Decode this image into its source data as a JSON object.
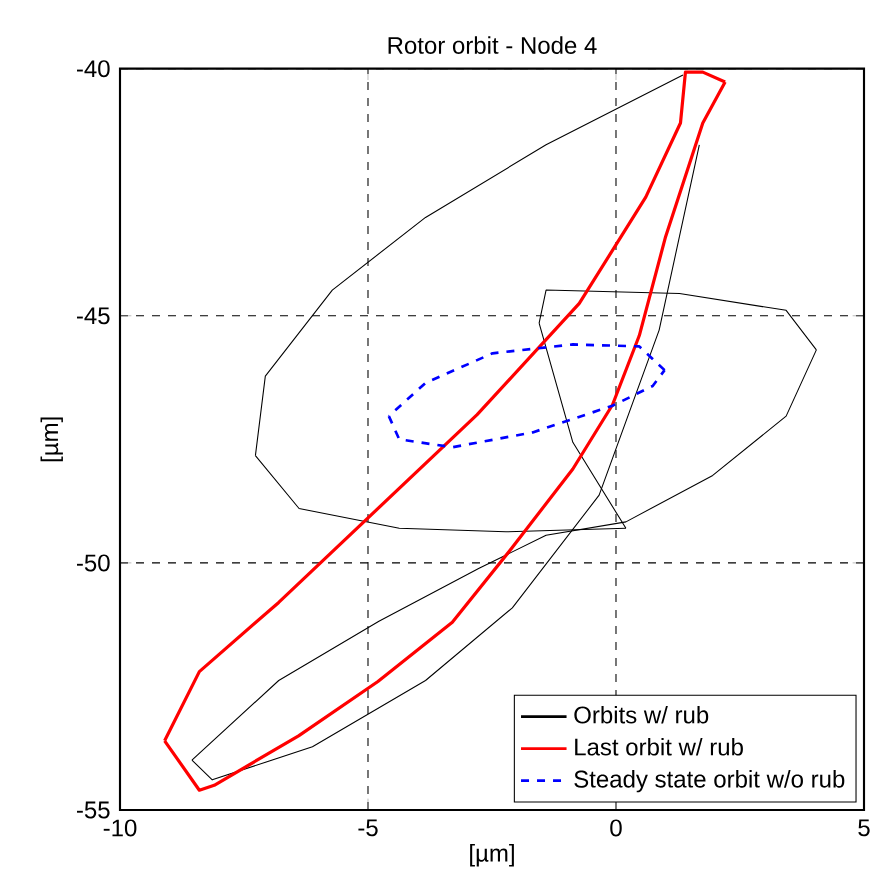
{
  "chart_data": {
    "type": "line",
    "title": "Rotor orbit - Node 4",
    "xlabel": "[µm]",
    "ylabel": "[µm]",
    "xlim": [
      -10,
      5
    ],
    "ylim": [
      -55,
      -40
    ],
    "xticks": [
      -10,
      -5,
      0,
      5
    ],
    "yticks": [
      -55,
      -50,
      -45,
      -40
    ],
    "grid": true,
    "legend": "bottom right",
    "marker": "none",
    "series": [
      {
        "name": "Orbits w/ rub",
        "color": "#000000",
        "line_style": "solid",
        "x": [
          1.35,
          -1.41,
          -3.84,
          -5.72,
          -7.07,
          -7.27
        ],
        "values": [
          -40.13,
          -41.54,
          -43.01,
          -44.48,
          -46.22,
          -47.83
        ]
      },
      {
        "color": "#000000",
        "line_style": "solid",
        "x": [
          -7.27,
          -6.39,
          -4.37,
          -2.22,
          0.2
        ],
        "values": [
          -47.83,
          -48.9,
          -49.3,
          -49.37,
          -49.3
        ]
      },
      {
        "color": "#000000",
        "line_style": "solid",
        "x": [
          0.2,
          -0.87,
          -1.55
        ],
        "values": [
          -49.3,
          -47.56,
          -45.15
        ]
      },
      {
        "color": "#000000",
        "line_style": "solid",
        "x": [
          -1.55,
          -1.41,
          1.28,
          3.43,
          4.04
        ],
        "values": [
          -45.15,
          -44.48,
          -44.55,
          -44.89,
          -45.69
        ]
      },
      {
        "color": "#000000",
        "line_style": "solid",
        "x": [
          4.04,
          3.43,
          1.95,
          0.2,
          -1.41,
          -2.76,
          -4.78,
          -6.8,
          -8.55
        ],
        "values": [
          -45.69,
          -47.03,
          -48.23,
          -49.17,
          -49.44,
          -50.11,
          -51.18,
          -52.38,
          -53.99
        ]
      },
      {
        "color": "#000000",
        "line_style": "solid",
        "x": [
          -8.55,
          -8.14,
          -6.12,
          -3.84,
          -2.09,
          -0.34,
          0.87,
          1.68
        ],
        "values": [
          -53.99,
          -54.39,
          -53.72,
          -52.38,
          -50.91,
          -48.63,
          -45.29,
          -41.54
        ]
      },
      {
        "name": "Last orbit w/ rub",
        "color": "#ff0000",
        "line_style": "solid",
        "x": [
          2.2,
          1.75,
          1.0,
          0.47,
          -0.07,
          -0.87,
          -2.1,
          -3.3,
          -4.8,
          -6.4,
          -8.1,
          -8.4,
          -9.1
        ],
        "values": [
          -40.27,
          -41.1,
          -43.4,
          -45.4,
          -46.8,
          -48.1,
          -49.7,
          -51.2,
          -52.4,
          -53.5,
          -54.5,
          -54.6,
          -53.6
        ]
      },
      {
        "color": "#ff0000",
        "line_style": "solid",
        "x": [
          -9.1,
          -8.4,
          -6.8,
          -4.8,
          -2.8,
          -0.74,
          0.6,
          1.3,
          1.4,
          1.75,
          2.2
        ],
        "values": [
          -53.6,
          -52.2,
          -50.8,
          -48.9,
          -47.0,
          -44.75,
          -42.6,
          -41.1,
          -40.07,
          -40.07,
          -40.27
        ]
      },
      {
        "name": "Steady state orbit w/o rub",
        "color": "#0000ff",
        "line_style": "dashed",
        "x": [
          0.98,
          0.47,
          -0.87,
          -2.49,
          -3.84,
          -4.58
        ],
        "values": [
          -46.1,
          -45.62,
          -45.58,
          -45.76,
          -46.36,
          -47.03
        ]
      },
      {
        "color": "#0000ff",
        "line_style": "dashed",
        "x": [
          -4.58,
          -4.37,
          -3.3,
          -1.68,
          -0.07,
          0.74,
          0.98
        ],
        "values": [
          -47.03,
          -47.5,
          -47.66,
          -47.36,
          -46.82,
          -46.42,
          -46.1
        ]
      }
    ]
  }
}
